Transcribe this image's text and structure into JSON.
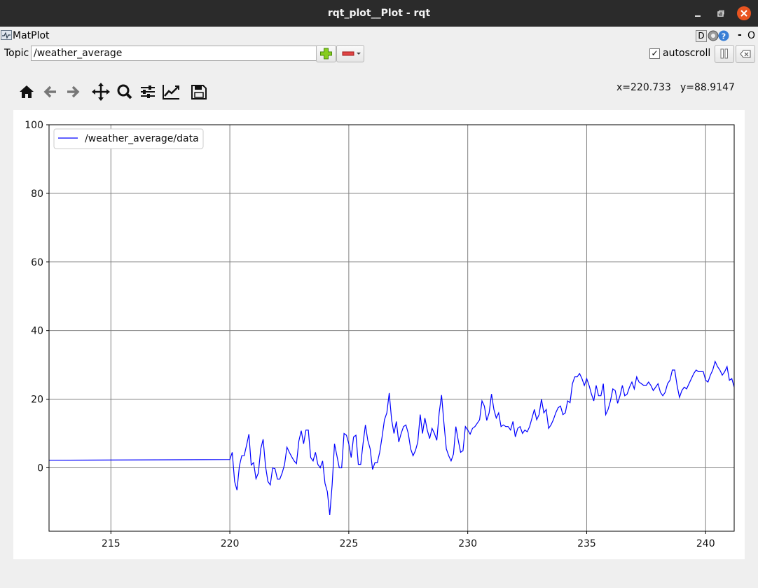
{
  "window": {
    "title": "rqt_plot__Plot - rqt"
  },
  "plugin": {
    "title": "MatPlot",
    "right_labels": {
      "d": "D",
      "dash": "-",
      "o": "O"
    }
  },
  "topic": {
    "label": "Topic",
    "value": "/weather_average"
  },
  "autoscroll": {
    "label": "autoscroll",
    "checked": true,
    "check_glyph": "✓"
  },
  "toolbar": {
    "items": [
      "home-icon",
      "back-arrow-icon",
      "forward-arrow-icon",
      "pan-icon",
      "zoom-icon",
      "configure-subplots-icon",
      "edit-axis-icon",
      "save-icon"
    ]
  },
  "cursor": {
    "x_label": "x=220.733",
    "y_label": "y=88.9147"
  },
  "colors": {
    "series": "#0000ff",
    "grid": "#808080",
    "close": "#e95420",
    "add": "#7bc618",
    "remove": "#e04040"
  },
  "chart_data": {
    "type": "line",
    "xlim": [
      212.4,
      241.2
    ],
    "ylim": [
      -18.5,
      100
    ],
    "xticks": [
      215,
      220,
      225,
      230,
      235,
      240
    ],
    "yticks": [
      0,
      20,
      40,
      60,
      80,
      100
    ],
    "grid": true,
    "legend_position": "top-left",
    "series": [
      {
        "name": "/weather_average/data",
        "x": [
          212.4,
          220.0,
          220.1,
          220.2,
          220.3,
          220.4,
          220.5,
          220.6,
          220.7,
          220.8,
          220.9,
          221.0,
          221.1,
          221.2,
          221.3,
          221.4,
          221.5,
          221.6,
          221.7,
          221.8,
          221.9,
          222.0,
          222.1,
          222.2,
          222.3,
          222.4,
          222.5,
          222.6,
          222.7,
          222.8,
          222.9,
          223.0,
          223.1,
          223.2,
          223.3,
          223.4,
          223.5,
          223.6,
          223.7,
          223.8,
          223.9,
          224.0,
          224.1,
          224.2,
          224.3,
          224.4,
          224.5,
          224.6,
          224.7,
          224.8,
          224.9,
          225.0,
          225.1,
          225.2,
          225.3,
          225.4,
          225.5,
          225.6,
          225.7,
          225.8,
          225.9,
          226.0,
          226.1,
          226.2,
          226.3,
          226.4,
          226.5,
          226.6,
          226.7,
          226.8,
          226.9,
          227.0,
          227.1,
          227.2,
          227.3,
          227.4,
          227.5,
          227.6,
          227.7,
          227.8,
          227.9,
          228.0,
          228.1,
          228.2,
          228.3,
          228.4,
          228.5,
          228.6,
          228.7,
          228.8,
          228.9,
          229.0,
          229.1,
          229.2,
          229.3,
          229.4,
          229.5,
          229.6,
          229.7,
          229.8,
          229.9,
          230.0,
          230.1,
          230.2,
          230.3,
          230.4,
          230.5,
          230.6,
          230.7,
          230.8,
          230.9,
          231.0,
          231.1,
          231.2,
          231.3,
          231.4,
          231.5,
          231.6,
          231.7,
          231.8,
          231.9,
          232.0,
          232.1,
          232.2,
          232.3,
          232.4,
          232.5,
          232.6,
          232.7,
          232.8,
          232.9,
          233.0,
          233.1,
          233.2,
          233.3,
          233.4,
          233.5,
          233.6,
          233.7,
          233.8,
          233.9,
          234.0,
          234.1,
          234.2,
          234.3,
          234.4,
          234.5,
          234.6,
          234.7,
          234.8,
          234.9,
          235.0,
          235.1,
          235.2,
          235.3,
          235.4,
          235.5,
          235.6,
          235.7,
          235.8,
          235.9,
          236.0,
          236.1,
          236.2,
          236.3,
          236.4,
          236.5,
          236.6,
          236.7,
          236.8,
          236.9,
          237.0,
          237.1,
          237.2,
          237.3,
          237.4,
          237.5,
          237.6,
          237.7,
          237.8,
          237.9,
          238.0,
          238.1,
          238.2,
          238.3,
          238.4,
          238.5,
          238.6,
          238.7,
          238.8,
          238.9,
          239.0,
          239.1,
          239.2,
          239.3,
          239.4,
          239.5,
          239.6,
          239.7,
          239.8,
          239.9,
          240.0,
          240.1,
          240.2,
          240.3,
          240.4,
          240.5,
          240.6,
          240.7,
          240.8,
          240.9,
          241.0,
          241.1,
          241.2
        ],
        "y": [
          2.2,
          2.4,
          4.5,
          -4.0,
          -6.5,
          0.5,
          3.5,
          3.5,
          6.5,
          9.8,
          0.8,
          1.5,
          -3.2,
          -1.5,
          5.5,
          8.3,
          0.5,
          -4.0,
          -5.0,
          0.0,
          -0.3,
          -3.3,
          -3.3,
          -1.5,
          1.0,
          6.0,
          4.5,
          3.2,
          2.0,
          1.2,
          7.8,
          10.8,
          7.0,
          11.0,
          11.0,
          3.0,
          2.0,
          4.5,
          1.0,
          0.0,
          2.0,
          -4.5,
          -7.0,
          -13.8,
          -5.0,
          7.0,
          3.5,
          0.0,
          0.0,
          10.0,
          9.5,
          7.0,
          3.0,
          9.0,
          9.5,
          1.0,
          1.0,
          7.0,
          12.5,
          8.0,
          5.5,
          -0.5,
          1.5,
          1.5,
          4.5,
          9.0,
          14.0,
          16.0,
          21.8,
          14.0,
          10.0,
          13.5,
          7.5,
          10.0,
          12.0,
          12.5,
          10.0,
          5.5,
          3.5,
          5.0,
          7.5,
          15.5,
          10.0,
          14.5,
          11.0,
          8.5,
          11.5,
          10.0,
          8.0,
          16.0,
          21.2,
          13.0,
          5.5,
          3.5,
          2.0,
          4.0,
          12.0,
          8.0,
          4.5,
          5.0,
          12.0,
          11.0,
          9.8,
          11.5,
          12.0,
          13.0,
          14.0,
          19.5,
          18.0,
          13.8,
          16.0,
          21.5,
          17.0,
          14.5,
          16.0,
          12.0,
          12.5,
          12.0,
          12.0,
          11.0,
          13.5,
          9.0,
          11.5,
          12.0,
          10.0,
          11.0,
          10.5,
          12.0,
          14.5,
          17.0,
          14.0,
          15.5,
          20.0,
          16.0,
          17.0,
          11.5,
          12.5,
          14.0,
          16.0,
          17.5,
          18.0,
          15.5,
          16.0,
          19.5,
          19.0,
          24.5,
          26.5,
          26.5,
          27.5,
          26.0,
          24.0,
          26.0,
          24.0,
          21.5,
          19.5,
          24.0,
          21.0,
          21.0,
          24.5,
          15.5,
          17.0,
          19.5,
          23.0,
          22.5,
          18.8,
          21.0,
          24.0,
          21.0,
          21.5,
          23.5,
          25.0,
          23.0,
          26.5,
          25.0,
          24.5,
          24.0,
          24.0,
          25.0,
          24.0,
          22.5,
          23.5,
          24.5,
          22.0,
          21.0,
          22.0,
          24.5,
          25.5,
          28.5,
          28.5,
          24.0,
          20.5,
          22.5,
          23.5,
          23.0,
          24.5,
          26.0,
          27.5,
          28.5,
          28.0,
          28.0,
          28.0,
          25.5,
          25.0,
          27.0,
          28.5,
          31.0,
          29.5,
          28.5,
          27.0,
          28.0,
          29.5,
          25.5,
          26.0,
          23.5
        ]
      }
    ]
  }
}
